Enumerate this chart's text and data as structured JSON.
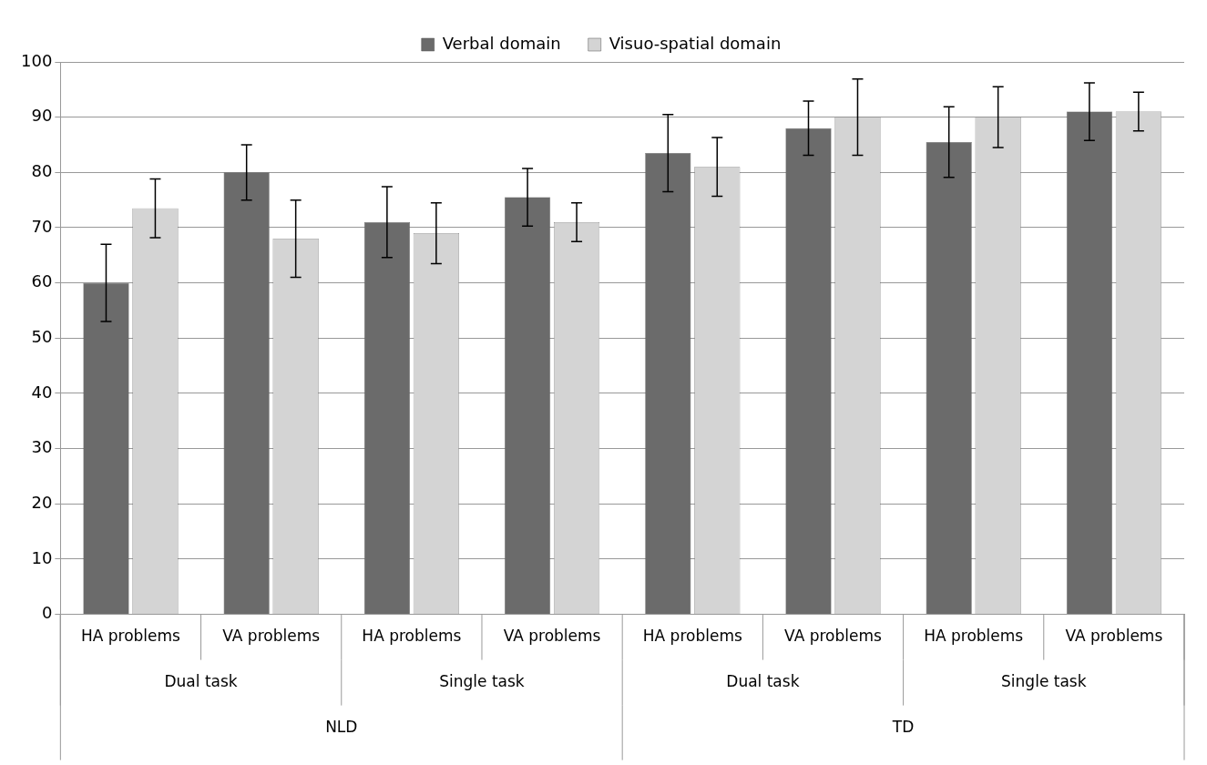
{
  "chart_data": {
    "type": "bar",
    "categories": [
      "HA problems",
      "VA problems",
      "HA problems",
      "VA problems",
      "HA problems",
      "VA problems",
      "HA problems",
      "VA problems"
    ],
    "series": [
      {
        "name": "Verbal domain",
        "color": "#6b6b6b",
        "values": [
          60,
          80,
          71,
          75.5,
          83.5,
          88,
          85.5,
          91
        ],
        "errors": [
          7,
          5,
          6.4,
          5.2,
          7,
          4.9,
          6.4,
          5.2
        ]
      },
      {
        "name": "Visuo-spatial domain",
        "color": "#d4d4d4",
        "values": [
          73.5,
          68,
          69,
          71,
          81,
          90,
          90,
          91
        ],
        "errors": [
          5.3,
          7,
          5.5,
          3.5,
          5.3,
          6.9,
          5.5,
          3.5
        ]
      }
    ],
    "annotations": [
      "Dual task",
      "Single task",
      "Dual task",
      "Single task",
      "NLD",
      "TD"
    ],
    "ylim": [
      0,
      100
    ],
    "yticks": [
      0,
      10,
      20,
      30,
      40,
      50,
      60,
      70,
      80,
      90,
      100
    ],
    "grid": "y",
    "legend": "top"
  }
}
